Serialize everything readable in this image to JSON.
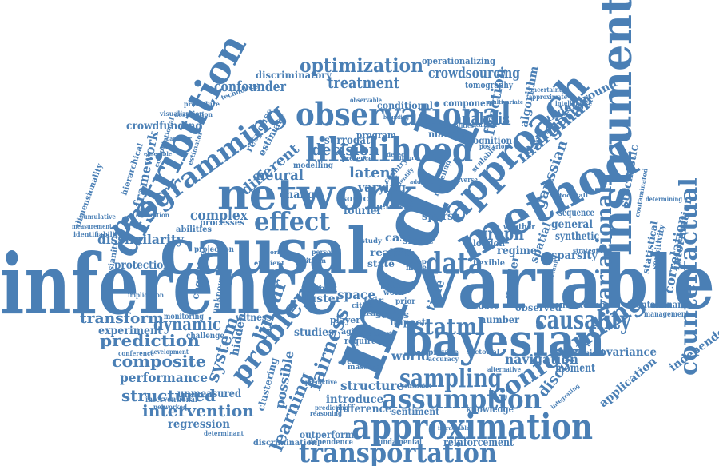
{
  "color": "#4a7fb5",
  "words": [
    "inference",
    "causal",
    "model",
    "variable",
    "bayesian",
    "instrumental",
    "network",
    "distribution",
    "method",
    "approach",
    "observational",
    "likelihood",
    "programming",
    "approximation",
    "assumption",
    "sampling",
    "confounding",
    "transportation",
    "effect",
    "problem",
    "counterfactual",
    "causality",
    "variational",
    "data",
    "fairness",
    "statml",
    "learning",
    "system",
    "optimization",
    "treatment",
    "confounder",
    "crowdsourcing",
    "analysis",
    "decision",
    "surrogate",
    "latent",
    "different",
    "complex",
    "neural",
    "framework",
    "crowdfunding",
    "discriminatory",
    "dissimilarity",
    "prediction",
    "composite",
    "performance",
    "structured",
    "intervention",
    "regression",
    "transform",
    "dynamic",
    "experiment",
    "gaussian",
    "marginal",
    "estimation",
    "function",
    "graph",
    "linear",
    "time",
    "covariance",
    "correlation",
    "information",
    "navigation",
    "discovery",
    "application",
    "independencies",
    "structure",
    "world",
    "sentiment",
    "difference",
    "introduce",
    "unmeasured",
    "hidden",
    "cluster",
    "space",
    "gender",
    "sparsity",
    "spatial",
    "stochastic",
    "sequence",
    "general",
    "contaminant",
    "management",
    "moment",
    "canonical",
    "knowledge",
    "reinforcement",
    "dependence",
    "fundamental",
    "discrimination",
    "outperform",
    "determinant",
    "possible",
    "clustering",
    "studies",
    "series",
    "impact",
    "number",
    "observed",
    "construction",
    "regime",
    "synthetic",
    "statistical",
    "sensitivity",
    "underground",
    "algorithm",
    "tomography",
    "component",
    "conditional",
    "machine",
    "cognition",
    "program",
    "modelling",
    "varying",
    "change",
    "processes",
    "abilities",
    "projection",
    "protection",
    "implication",
    "monitoring",
    "cognitive",
    "witness",
    "recent",
    "measurement",
    "identifiability",
    "dimensionality",
    "cumulative",
    "hierarchical",
    "visualization",
    "destination",
    "procedure",
    "estimator",
    "disruption",
    "fourier",
    "source",
    "agent",
    "sparse",
    "real",
    "state",
    "path",
    "case",
    "smart",
    "london",
    "flexible",
    "weather",
    "operationalizing",
    "interventional",
    "networked",
    "conference",
    "development",
    "challenge",
    "response",
    "estimate",
    "technology",
    "computational",
    "gaussianity",
    "unknown",
    "shock",
    "presence",
    "country",
    "efficient",
    "require",
    "aging",
    "average",
    "massive",
    "player",
    "cities",
    "reduce",
    "provide",
    "accuracy",
    "factorial",
    "predictive",
    "predicting",
    "reasoning",
    "intractable",
    "constraint",
    "alternative",
    "integrating",
    "bounding",
    "multivariate",
    "quantities",
    "mediation",
    "posterior",
    "inverse",
    "uncertainty",
    "approximate",
    "intelligence",
    "determining",
    "contaminated",
    "opportunity",
    "strategies",
    "football",
    "additive",
    "identify",
    "scalable",
    "modeling",
    "detect",
    "inform",
    "study",
    "deep",
    "fair",
    "pain",
    "work",
    "prior",
    "team",
    "more",
    "origin",
    "citizen",
    "person",
    "football",
    "observable",
    "backdoor",
    "ensemble",
    "transport"
  ]
}
